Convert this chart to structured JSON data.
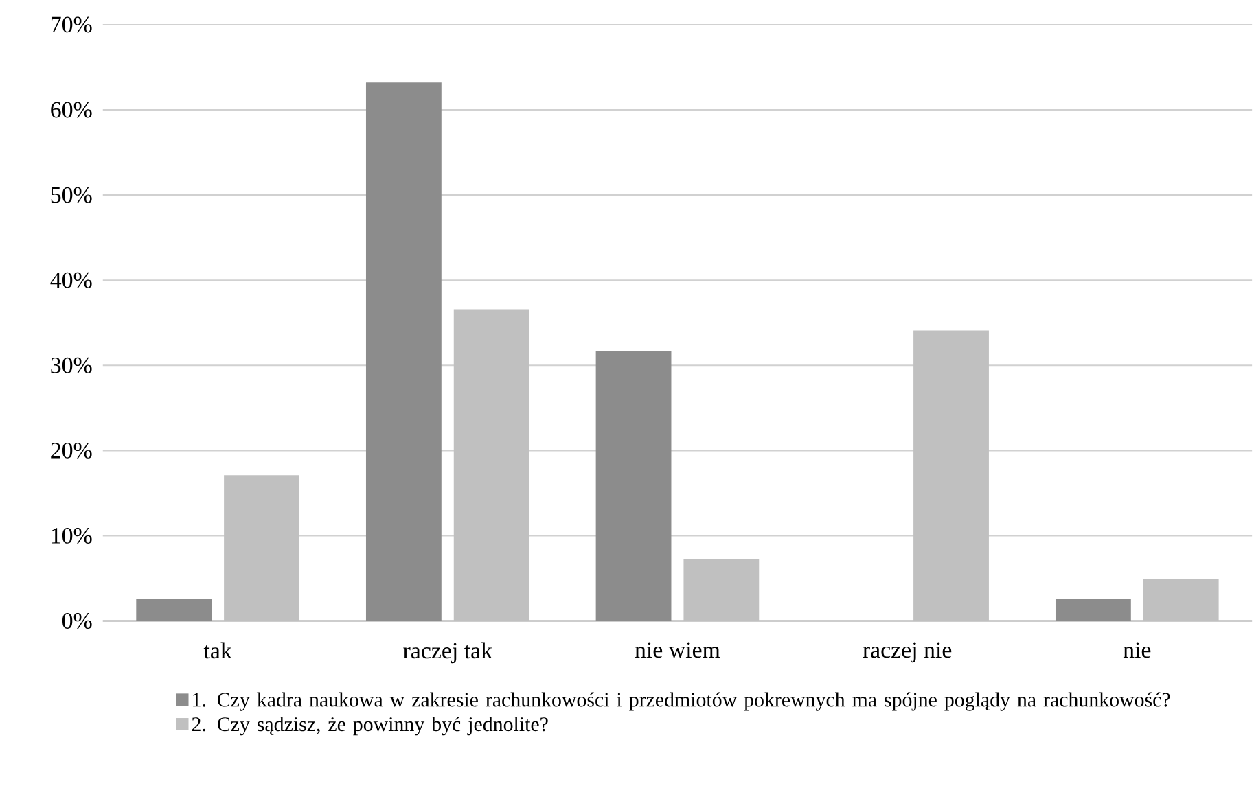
{
  "chart_data": {
    "type": "bar",
    "categories": [
      "tak",
      "raczej tak",
      "nie wiem",
      "raczej nie",
      "nie"
    ],
    "series": [
      {
        "name": "1. Czy kadra naukowa w zakresie rachunkowości i przedmiotów pokrewnych ma spójne poglądy na rachunkowość?",
        "color": "#8c8c8c",
        "values": [
          2.6,
          63.2,
          31.7,
          0,
          2.6
        ]
      },
      {
        "name": "2. Czy sądzisz, że powinny być jednolite?",
        "color": "#c0c0c0",
        "values": [
          17.1,
          36.6,
          7.3,
          34.1,
          4.9
        ]
      }
    ],
    "ylim": [
      0,
      70
    ],
    "yticks": [
      {
        "value": 0,
        "label": "0%"
      },
      {
        "value": 10,
        "label": "10%"
      },
      {
        "value": 20,
        "label": "20%"
      },
      {
        "value": 30,
        "label": "30%"
      },
      {
        "value": 40,
        "label": "40%"
      },
      {
        "value": 50,
        "label": "50%"
      },
      {
        "value": 60,
        "label": "60%"
      },
      {
        "value": 70,
        "label": "70%"
      }
    ],
    "grid": "y",
    "legend": "bottom"
  }
}
